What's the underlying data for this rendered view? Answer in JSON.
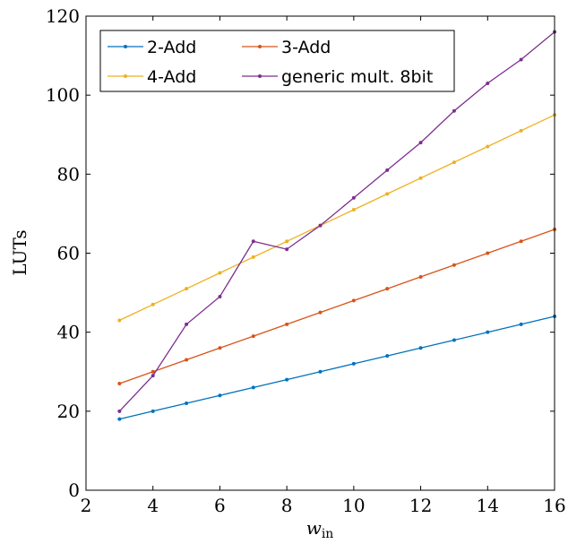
{
  "chart_data": {
    "type": "line",
    "title": "",
    "xlabel": "w",
    "xlabel_sub": "in",
    "ylabel": "LUTs",
    "xlim": [
      2,
      16
    ],
    "ylim": [
      0,
      120
    ],
    "x_ticks": [
      2,
      4,
      6,
      8,
      10,
      12,
      14,
      16
    ],
    "y_ticks": [
      0,
      20,
      40,
      60,
      80,
      100,
      120
    ],
    "grid": false,
    "legend_position": "top-left",
    "legend_columns": 2,
    "x": [
      3,
      4,
      5,
      6,
      7,
      8,
      9,
      10,
      11,
      12,
      13,
      14,
      15,
      16
    ],
    "series": [
      {
        "name": "2-Add",
        "color": "#0072BD",
        "values": [
          18,
          20,
          22,
          24,
          26,
          28,
          30,
          32,
          34,
          36,
          38,
          40,
          42,
          44
        ]
      },
      {
        "name": "3-Add",
        "color": "#D95319",
        "values": [
          27,
          30,
          33,
          36,
          39,
          42,
          45,
          48,
          51,
          54,
          57,
          60,
          63,
          66
        ]
      },
      {
        "name": "4-Add",
        "color": "#EDB120",
        "values": [
          43,
          47,
          51,
          55,
          59,
          63,
          67,
          71,
          75,
          79,
          83,
          87,
          91,
          95
        ]
      },
      {
        "name": "generic mult. 8bit",
        "color": "#7E2F8E",
        "values": [
          20,
          29,
          42,
          49,
          63,
          61,
          67,
          74,
          81,
          88,
          96,
          103,
          109,
          116
        ]
      }
    ]
  }
}
